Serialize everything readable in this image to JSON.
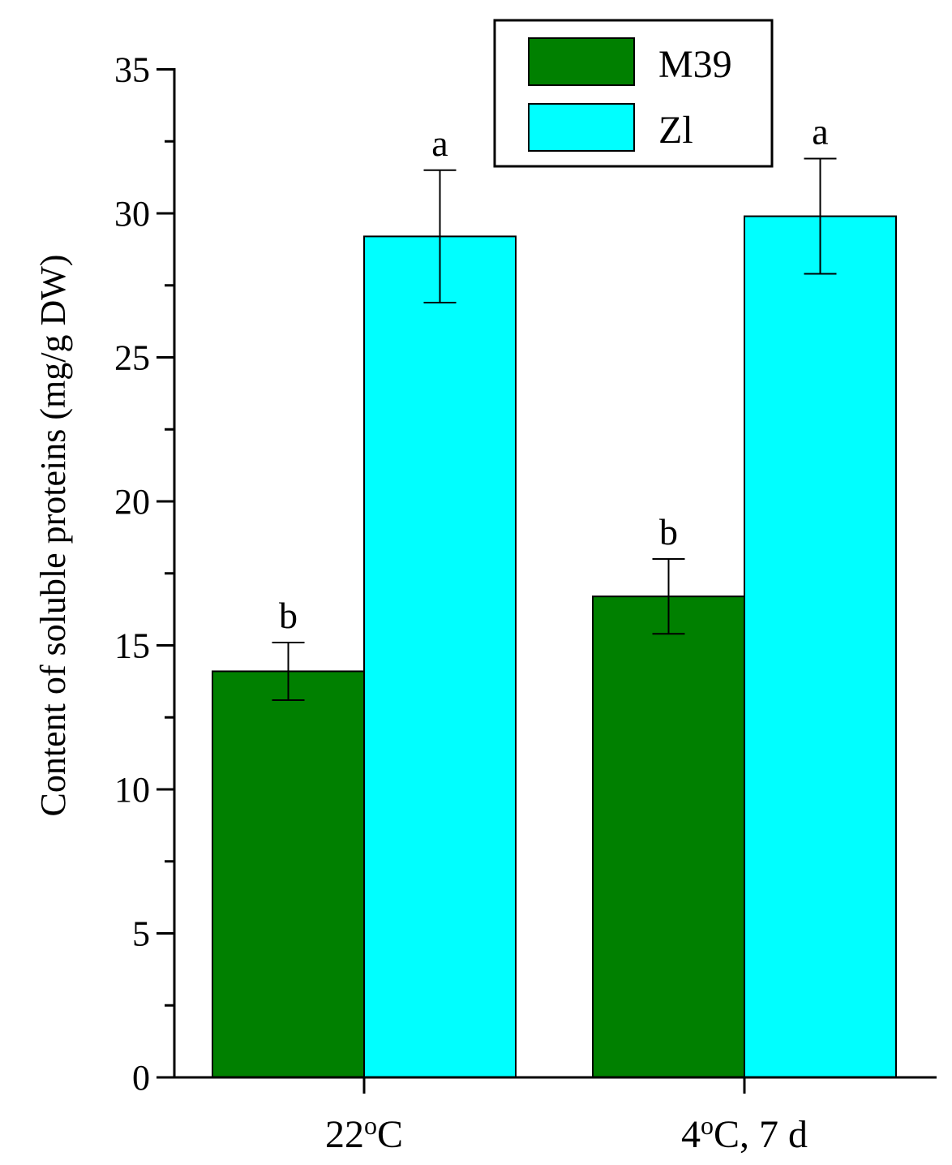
{
  "chart_data": {
    "type": "bar",
    "title": "",
    "xlabel": "",
    "ylabel": "Content of soluble proteins (mg/g DW)",
    "ylim": [
      0,
      35
    ],
    "yticks": [
      0,
      5,
      10,
      15,
      20,
      25,
      30,
      35
    ],
    "categories": [
      "22oC",
      "4oC, 7 d"
    ],
    "legend_position": "top-right",
    "series": [
      {
        "name": "M39",
        "color": "#008000",
        "values": [
          14.1,
          16.7
        ],
        "errors": [
          1.0,
          1.3
        ],
        "letters": [
          "b",
          "b"
        ]
      },
      {
        "name": "Zl",
        "color": "#00ffff",
        "values": [
          29.2,
          29.9
        ],
        "errors": [
          2.3,
          2.0
        ],
        "letters": [
          "a",
          "a"
        ]
      }
    ]
  }
}
